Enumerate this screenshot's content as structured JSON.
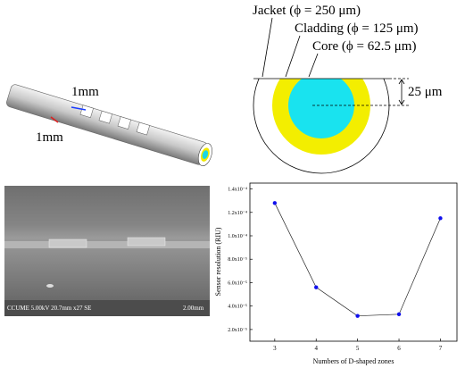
{
  "diagram": {
    "fiber_labels": [
      "1mm",
      "1mm"
    ],
    "cross_section": {
      "jacket": "Jacket (ϕ = 250 μm)",
      "cladding": "Cladding (ϕ = 125 μm)",
      "core": "Core (ϕ = 62.5 μm)",
      "offset": "25 μm"
    }
  },
  "sem": {
    "info": "CCUME 5.00kV 20.7mm x27 SE",
    "scale": "2.00mm"
  },
  "chart_data": {
    "type": "line",
    "x_label": "Numbers of D-shaped zones",
    "y_label": "Sensor resolution (RIU)",
    "x": [
      3,
      4,
      5,
      6,
      7
    ],
    "values": [
      0.000128,
      5.6e-05,
      3.16e-05,
      3.3e-05,
      0.000115
    ],
    "color": "#1010ee",
    "xlim": [
      2.4,
      7.4
    ],
    "xticks": [
      3,
      4,
      5,
      6,
      7
    ],
    "ylim": [
      1e-05,
      0.000145
    ],
    "yticks": [
      {
        "value": 2e-05,
        "label": "2.0x10⁻⁵"
      },
      {
        "value": 4e-05,
        "label": "4.0x10⁻⁵"
      },
      {
        "value": 6e-05,
        "label": "6.0x10⁻⁵"
      },
      {
        "value": 8e-05,
        "label": "8.0x10⁻⁵"
      },
      {
        "value": 0.0001,
        "label": "1.0x10⁻⁴"
      },
      {
        "value": 0.00012,
        "label": "1.2x10⁻⁴"
      },
      {
        "value": 0.00014,
        "label": "1.4x10⁻⁴"
      }
    ]
  }
}
